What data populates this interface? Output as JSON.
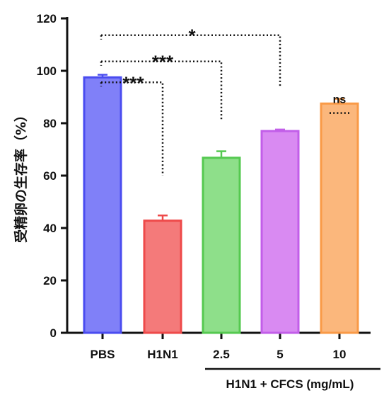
{
  "chart_data": {
    "type": "bar",
    "ylabel": "受精卵の生存率（%）",
    "xlabel": "",
    "ylim": [
      0,
      120
    ],
    "yticks": [
      0,
      20,
      40,
      60,
      80,
      100,
      120
    ],
    "categories": [
      "PBS",
      "H1N1",
      "2.5",
      "5",
      "10"
    ],
    "values": [
      97.5,
      42.8,
      66.8,
      77.0,
      87.5
    ],
    "errors": [
      1.0,
      2.0,
      2.5,
      0.6,
      1.8
    ],
    "colors": {
      "fill": [
        "#8080f8",
        "#f47a7a",
        "#8edf8a",
        "#d98af2",
        "#fbb77c"
      ],
      "stroke": [
        "#4a4cf0",
        "#ee4a4a",
        "#55c950",
        "#c25ee9",
        "#f99a47"
      ]
    },
    "group_label": "H1N1 + CFCS (mg/mL)",
    "group_span": [
      1,
      4
    ],
    "significance": [
      {
        "label": "***",
        "from": 0,
        "to": 1,
        "level": 101,
        "end": 60
      },
      {
        "label": "***",
        "from": 0,
        "to": 2,
        "level": 109,
        "end": 81
      },
      {
        "label": "*",
        "from": 0,
        "to": 3,
        "level": 119,
        "end": 94
      },
      {
        "label": "ns",
        "from": 4,
        "to": 4,
        "level": 92,
        "end": 92
      }
    ]
  }
}
